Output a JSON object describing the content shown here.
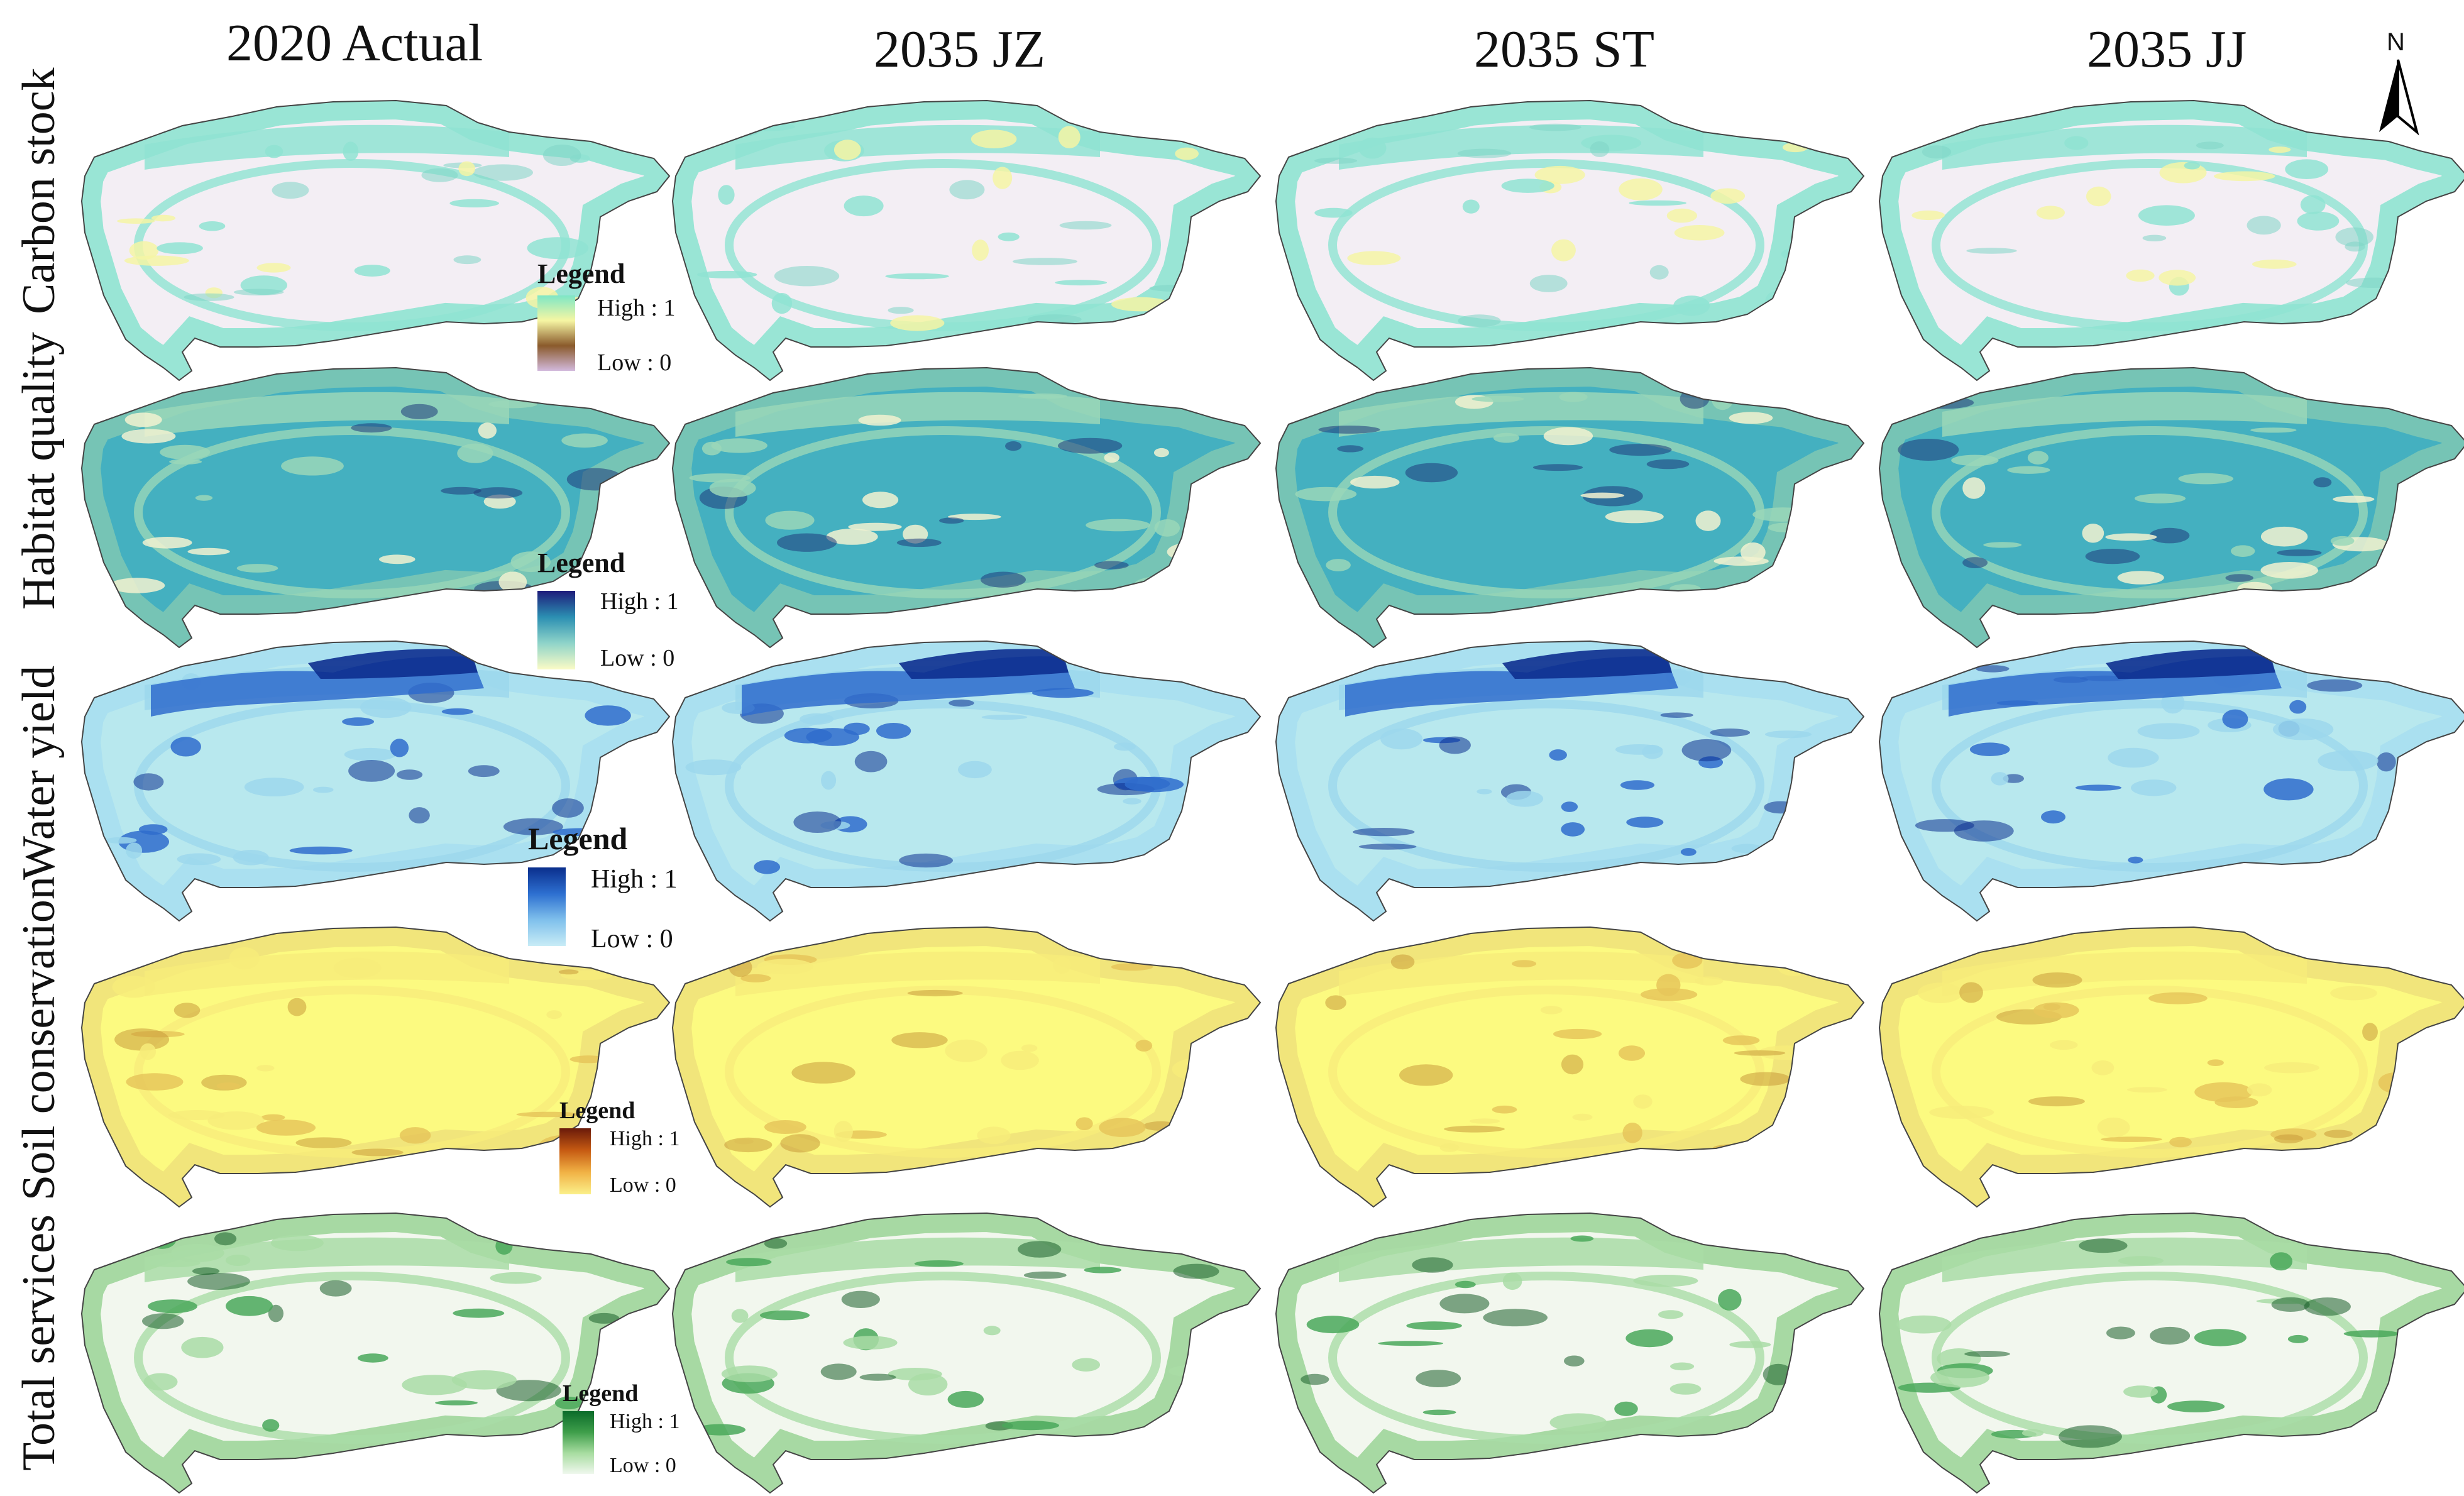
{
  "columns": [
    "2020 Actual",
    "2035 JZ",
    "2035 ST",
    "2035 JJ"
  ],
  "rows": [
    {
      "label": "Carbon stock",
      "legend": {
        "title": "Legend",
        "high": "High : 1",
        "low": "Low : 0",
        "colors": [
          "#7ee6c6",
          "#f6f6a3",
          "#8a5a2b",
          "#d2b9dc"
        ]
      },
      "map_colors": {
        "base": "#f3eef4",
        "main": "#8fe3d2",
        "accent": "#f4f4a4",
        "dark": "#7fd6c7",
        "rim": "#8fe3d2"
      }
    },
    {
      "label": "Habitat quality",
      "legend": {
        "title": "Legend",
        "high": "High : 1",
        "low": "Low : 0",
        "colors": [
          "#1e1c7a",
          "#2b8fb2",
          "#8fd4c9",
          "#fbfbc6"
        ]
      },
      "map_colors": {
        "base": "#44b0c0",
        "main": "#9ad7b8",
        "accent": "#f2f2d0",
        "dark": "#1f3b7a",
        "rim": "#7cc7b4"
      }
    },
    {
      "label": "Water yield",
      "legend": {
        "title": "Legend",
        "high": "High : 1",
        "low": "Low : 0",
        "colors": [
          "#0a2e8c",
          "#2d6fd0",
          "#7fc0ec",
          "#c8ecf6"
        ]
      },
      "map_colors": {
        "base": "#b8e8ee",
        "main": "#9cd7ec",
        "accent": "#2f6ccd",
        "dark": "#0d2f8f",
        "rim": "#a8dff0"
      }
    },
    {
      "label": "Soil conservation",
      "legend": {
        "title": "Legend",
        "high": "High : 1",
        "low": "Low : 0",
        "colors": [
          "#6a1a0a",
          "#c65a12",
          "#f1b245",
          "#fbf08a"
        ]
      },
      "map_colors": {
        "base": "#fcfa80",
        "main": "#f7ec7a",
        "accent": "#e6c65a",
        "dark": "#c99a3a",
        "rim": "#efe27a"
      }
    },
    {
      "label": "Total  services",
      "legend": {
        "title": "Legend",
        "high": "High : 1",
        "low": "Low : 0",
        "colors": [
          "#0b6b2a",
          "#3e9e4a",
          "#a7dca0",
          "#f0f8ee"
        ]
      },
      "map_colors": {
        "base": "#f2f7ee",
        "main": "#a9dca6",
        "accent": "#4aa85a",
        "dark": "#1a5e2a",
        "rim": "#9ed59a"
      }
    }
  ],
  "north_label": "N"
}
